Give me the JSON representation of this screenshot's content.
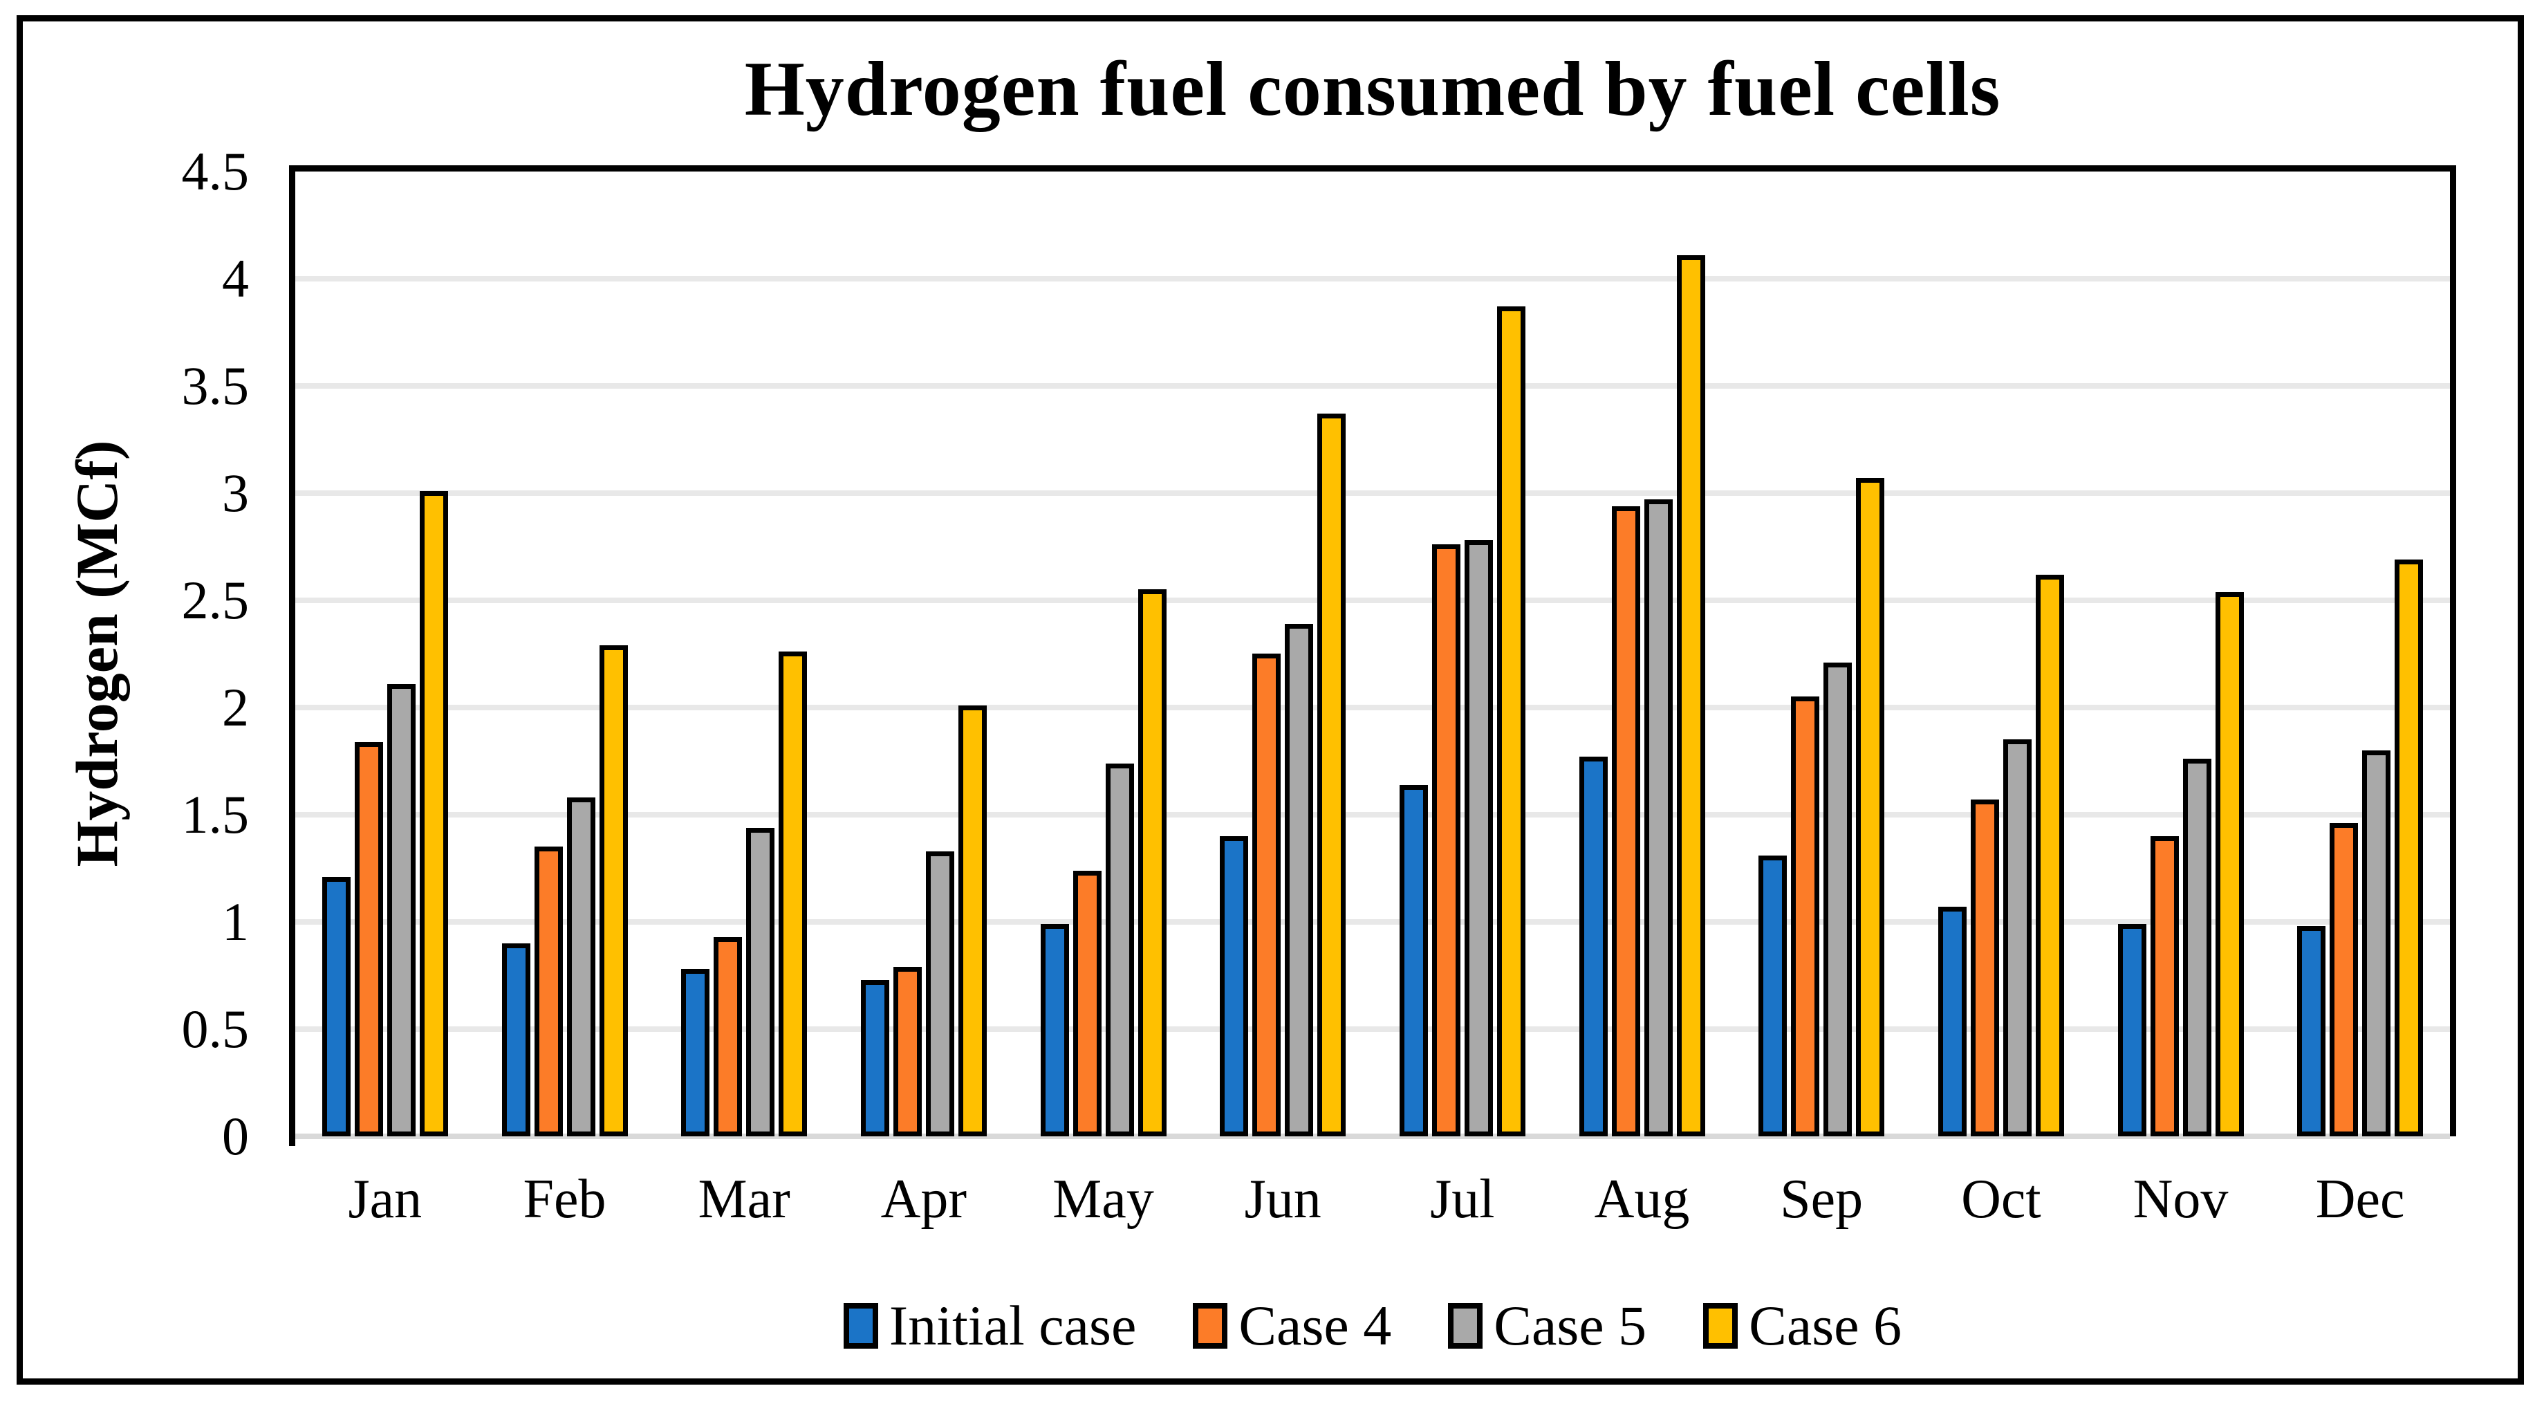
{
  "chart_data": {
    "type": "bar",
    "title": "Hydrogen fuel consumed by fuel cells",
    "xlabel": "",
    "ylabel": "Hydrogen (MCf)",
    "ylim": [
      0,
      4.5
    ],
    "ytick_step": 0.5,
    "ytick_labels": [
      "0",
      "0.5",
      "1",
      "1.5",
      "2",
      "2.5",
      "3",
      "3.5",
      "4",
      "4.5"
    ],
    "grid": true,
    "legend_position": "bottom",
    "categories": [
      "Jan",
      "Feb",
      "Mar",
      "Apr",
      "May",
      "Jun",
      "Jul",
      "Aug",
      "Sep",
      "Oct",
      "Nov",
      "Dec"
    ],
    "series": [
      {
        "name": "Initial case",
        "color": "#1B74C7",
        "values": [
          1.21,
          0.9,
          0.78,
          0.73,
          0.99,
          1.4,
          1.64,
          1.77,
          1.31,
          1.07,
          0.99,
          0.98
        ]
      },
      {
        "name": "Case 4",
        "color": "#FC7C28",
        "values": [
          1.84,
          1.35,
          0.93,
          0.79,
          1.24,
          2.25,
          2.76,
          2.94,
          2.05,
          1.57,
          1.4,
          1.46
        ]
      },
      {
        "name": "Case 5",
        "color": "#A9A9A9",
        "values": [
          2.11,
          1.58,
          1.44,
          1.33,
          1.74,
          2.39,
          2.78,
          2.97,
          2.21,
          1.85,
          1.76,
          1.8
        ]
      },
      {
        "name": "Case 6",
        "color": "#FFC000",
        "values": [
          3.01,
          2.29,
          2.26,
          2.01,
          2.55,
          3.37,
          3.87,
          4.11,
          3.07,
          2.62,
          2.54,
          2.69
        ]
      }
    ],
    "colors": {
      "bar_outline": "#000000",
      "gridline": "#E8E8E8",
      "baseline": "#D9D9D9",
      "axis": "#000000"
    }
  }
}
